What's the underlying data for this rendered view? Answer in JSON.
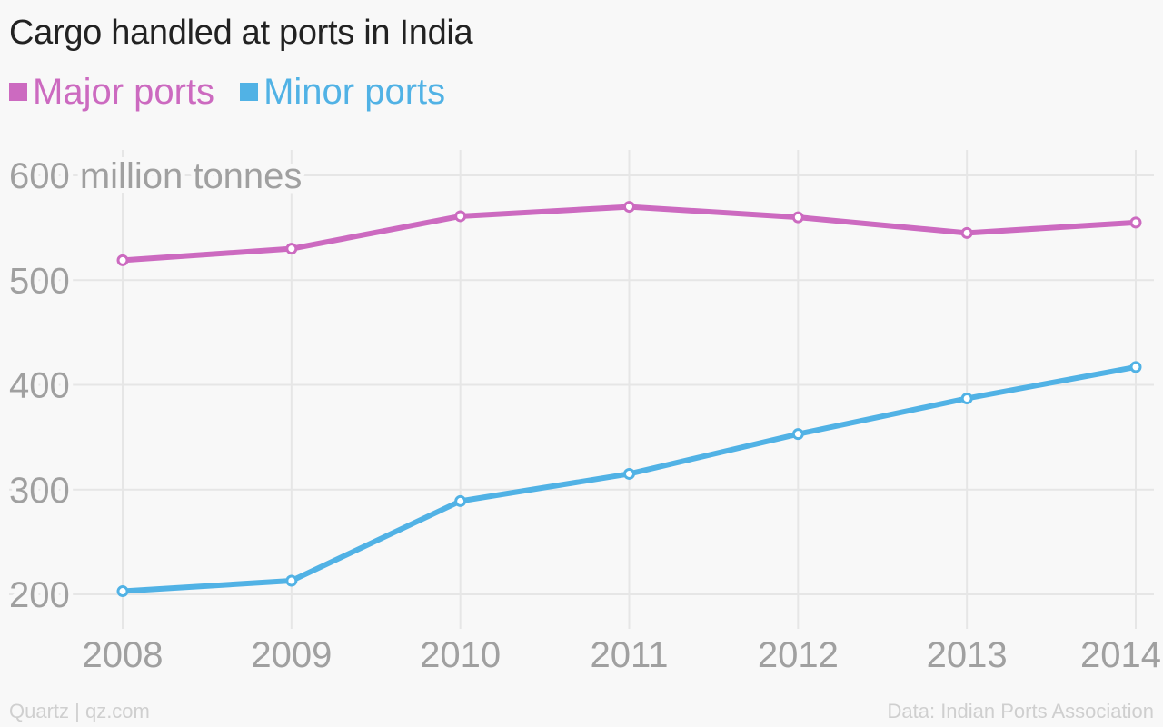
{
  "header": {
    "title": "Cargo handled at ports in India"
  },
  "footer": {
    "credit": "Quartz | qz.com",
    "source": "Data: Indian Ports Association"
  },
  "chart_data": {
    "type": "line",
    "title": "Cargo handled at ports in India",
    "ylabel": "600 million tonnes",
    "x": [
      "2008",
      "2009",
      "2010",
      "2011",
      "2012",
      "2013",
      "2014"
    ],
    "yticks": [
      "200",
      "300",
      "400",
      "500"
    ],
    "top_tick_label": "600 million tonnes",
    "ylim": [
      190,
      600
    ],
    "grid": true,
    "legend_position": "top-left",
    "series": [
      {
        "name": "Major ports",
        "color": "#cc6ac0",
        "values": [
          519,
          530,
          561,
          570,
          560,
          545,
          555
        ]
      },
      {
        "name": "Minor ports",
        "color": "#51b2e5",
        "values": [
          203,
          213,
          289,
          315,
          353,
          387,
          417
        ]
      }
    ]
  }
}
